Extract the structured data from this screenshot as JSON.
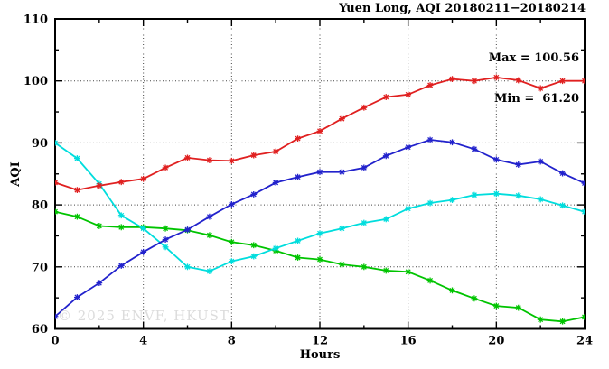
{
  "chart_data": {
    "type": "line",
    "title": "Yuen Long, AQI 20180211−20180214",
    "xlabel": "Hours",
    "ylabel": "AQI",
    "xlim": [
      0,
      24
    ],
    "ylim": [
      60,
      110
    ],
    "x_major_ticks": [
      0,
      4,
      8,
      12,
      16,
      20,
      24
    ],
    "x_minor_ticks": [
      2,
      6,
      10,
      14,
      18,
      22
    ],
    "y_major_ticks": [
      60,
      70,
      80,
      90,
      100,
      110
    ],
    "y_minor_ticks": [
      65,
      75,
      85,
      95,
      105
    ],
    "x_gridlines": [
      4,
      8,
      12,
      16,
      20
    ],
    "y_gridlines": [
      70,
      80,
      90,
      100
    ],
    "grid_style": "dotted",
    "legend": "none",
    "background": "#ffffff",
    "frame_color": "#000000",
    "grid_color": "#444444",
    "x": [
      0,
      1,
      2,
      3,
      4,
      5,
      6,
      7,
      8,
      9,
      10,
      11,
      12,
      13,
      14,
      15,
      16,
      17,
      18,
      19,
      20,
      21,
      22,
      23,
      24
    ],
    "series": [
      {
        "name": "green-line",
        "color": "#00c400",
        "marker": "asterisk",
        "values": [
          78.9,
          78.1,
          76.6,
          76.4,
          76.4,
          76.2,
          75.9,
          75.1,
          74.0,
          73.5,
          72.6,
          71.5,
          71.2,
          70.4,
          70.0,
          69.4,
          69.2,
          67.8,
          66.2,
          64.9,
          63.7,
          63.4,
          61.5,
          61.2,
          61.9
        ]
      },
      {
        "name": "cyan-line",
        "color": "#00dddd",
        "marker": "asterisk",
        "values": [
          90.0,
          87.5,
          83.4,
          78.3,
          76.2,
          73.2,
          70.0,
          69.3,
          70.9,
          71.7,
          73.0,
          74.2,
          75.4,
          76.2,
          77.1,
          77.7,
          79.4,
          80.3,
          80.8,
          81.6,
          81.8,
          81.5,
          80.9,
          79.9,
          78.9
        ]
      },
      {
        "name": "blue-line",
        "color": "#2222cc",
        "marker": "asterisk",
        "values": [
          62.0,
          65.1,
          67.4,
          70.2,
          72.4,
          74.4,
          76.0,
          78.1,
          80.1,
          81.7,
          83.6,
          84.5,
          85.3,
          85.3,
          86.0,
          87.9,
          89.3,
          90.5,
          90.1,
          89.0,
          87.3,
          86.5,
          87.0,
          85.1,
          83.5
        ]
      },
      {
        "name": "red-line",
        "color": "#e02020",
        "marker": "asterisk",
        "values": [
          83.6,
          82.4,
          83.1,
          83.7,
          84.2,
          86.0,
          87.6,
          87.2,
          87.1,
          88.0,
          88.6,
          90.7,
          91.9,
          93.9,
          95.7,
          97.4,
          97.8,
          99.3,
          100.3,
          100.0,
          100.56,
          100.1,
          98.8,
          100.0,
          100.0
        ]
      }
    ],
    "annotations": {
      "max_label": "Max = 100.56",
      "min_label": "Min =  61.20",
      "max_value": 100.56,
      "min_value": 61.2
    },
    "watermark": "© 2025 ENVF, HKUST"
  }
}
